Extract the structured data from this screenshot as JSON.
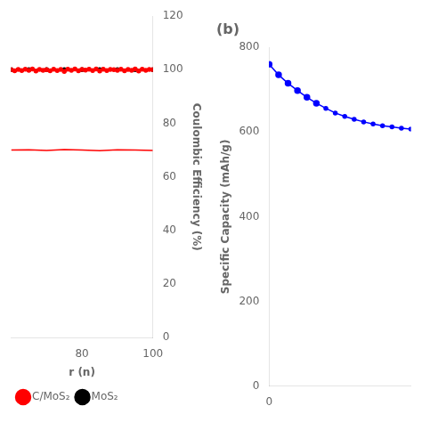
{
  "chart_data": [
    {
      "type": "line",
      "xlabel": "r (n)",
      "y2label": "Coulombic Efficiency (%)",
      "xlim": [
        60,
        100
      ],
      "xticks": [
        80,
        100
      ],
      "y2lim": [
        0,
        120
      ],
      "y2ticks": [
        0,
        20,
        40,
        60,
        80,
        100,
        120
      ],
      "grid": false,
      "legend": "lower left",
      "series": [
        {
          "name": "C/MoS₂",
          "color": "red",
          "axis": "y2",
          "marker": "circle",
          "x": [
            60,
            61,
            62,
            63,
            64,
            65,
            66,
            67,
            68,
            69,
            70,
            71,
            72,
            73,
            74,
            75,
            76,
            77,
            78,
            79,
            80,
            81,
            82,
            83,
            84,
            85,
            86,
            87,
            88,
            89,
            90,
            91,
            92,
            93,
            94,
            95,
            96,
            97,
            98,
            99,
            100
          ],
          "values": [
            100,
            99.6,
            100.1,
            99.7,
            100.2,
            99.8,
            100.3,
            99.5,
            100.1,
            99.8,
            100.0,
            99.6,
            100.2,
            99.7,
            100.1,
            99.4,
            100.2,
            99.8,
            100.3,
            99.6,
            100.1,
            99.9,
            100.2,
            99.7,
            100.3,
            99.5,
            100.2,
            99.7,
            100.1,
            100.0,
            99.8,
            100.2,
            99.6,
            100.1,
            99.8,
            100.3,
            99.5,
            100.2,
            99.8,
            100.1,
            100.0
          ]
        },
        {
          "color": "red",
          "axis": "y2",
          "marker": "none",
          "x": [
            60,
            65,
            70,
            75,
            80,
            85,
            90,
            95,
            100
          ],
          "values": [
            70.0,
            70.1,
            69.9,
            70.2,
            70.0,
            69.8,
            70.1,
            70.0,
            69.9
          ]
        },
        {
          "name": "MoS₂",
          "color": "black",
          "axis": "y2",
          "marker": "circle",
          "x": [
            60,
            65,
            70,
            75,
            80,
            85,
            90,
            95,
            100
          ],
          "values": [
            100.0,
            100.0,
            100.0,
            100.0,
            100.0,
            100.0,
            100.0,
            100.0,
            100.0
          ]
        }
      ]
    },
    {
      "type": "line",
      "annotations": [
        "(b)"
      ],
      "ylabel": "Specific Capacity (mAh/g)",
      "xlim": [
        0,
        15
      ],
      "xticks": [
        0
      ],
      "ylim": [
        0,
        800
      ],
      "yticks": [
        0,
        200,
        400,
        600,
        800
      ],
      "grid": false,
      "series": [
        {
          "color": "blue",
          "marker": "circle",
          "x": [
            0,
            1,
            2,
            3,
            4,
            5,
            6,
            7,
            8,
            9,
            10,
            11,
            12,
            13,
            14,
            15
          ],
          "values": [
            760,
            735,
            715,
            698,
            682,
            668,
            656,
            645,
            637,
            630,
            624,
            619,
            615,
            612,
            609,
            607
          ]
        },
        {
          "type": "scatter",
          "color": "blue",
          "marker": "circle",
          "x": [
            0,
            1,
            2,
            3,
            4,
            5
          ],
          "values": [
            760,
            735,
            715,
            698,
            682,
            668
          ]
        }
      ]
    }
  ]
}
